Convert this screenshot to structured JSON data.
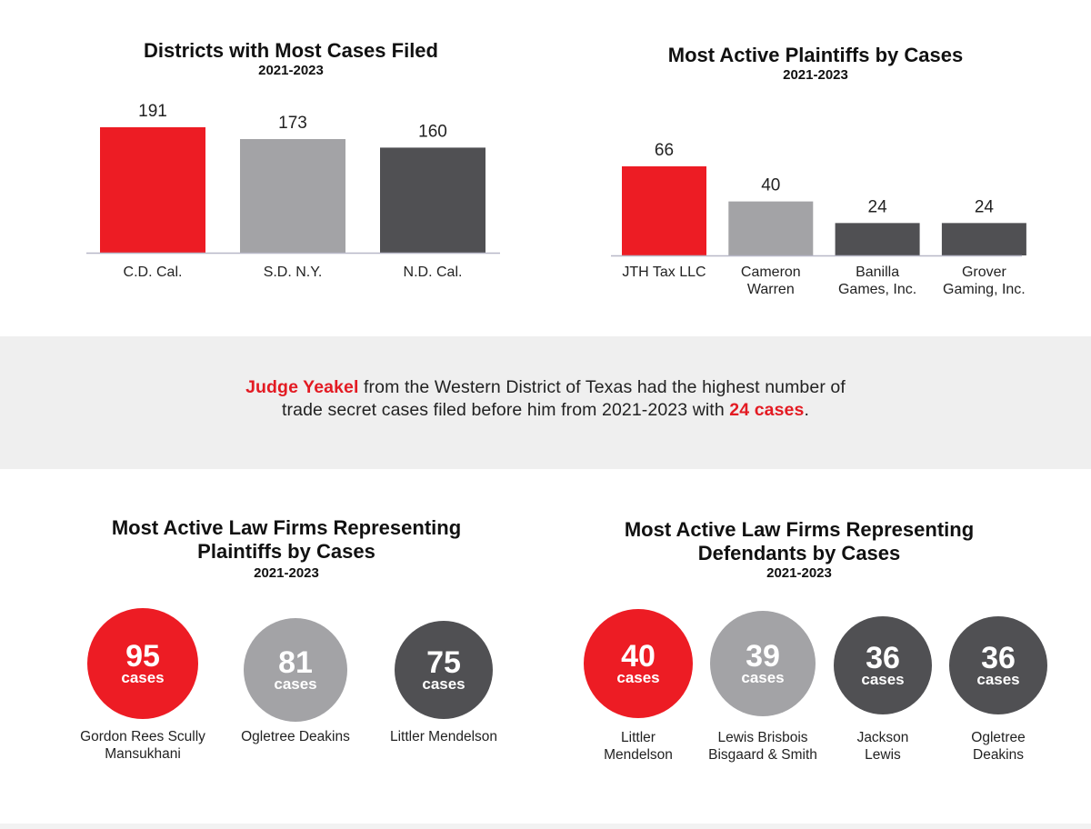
{
  "colors": {
    "red": "#ed1c24",
    "light_gray": "#a3a3a6",
    "dark_gray": "#505053",
    "axis": "#b8b8c8",
    "band": "#efefef"
  },
  "chart_data": [
    {
      "type": "bar",
      "title": "Districts with Most Cases Filed",
      "subtitle": "2021-2023",
      "categories": [
        "C.D. Cal.",
        "S.D. N.Y.",
        "N.D. Cal."
      ],
      "values": [
        191,
        173,
        160
      ],
      "bar_colors": [
        "#ed1c24",
        "#a3a3a6",
        "#505053"
      ],
      "ylim": [
        0,
        191
      ],
      "grid": false,
      "xlabel": "",
      "ylabel": ""
    },
    {
      "type": "bar",
      "title": "Most Active Plaintiffs by Cases",
      "subtitle": "2021-2023",
      "categories": [
        "JTH Tax LLC",
        "Cameron\nWarren",
        "Banilla\nGames, Inc.",
        "Grover\nGaming, Inc."
      ],
      "values": [
        66,
        40,
        24,
        24
      ],
      "bar_colors": [
        "#ed1c24",
        "#a3a3a6",
        "#505053",
        "#505053"
      ],
      "ylim": [
        0,
        66
      ],
      "grid": false,
      "xlabel": "",
      "ylabel": ""
    },
    {
      "type": "bubble",
      "title": "Most Active Law Firms Representing\nPlaintiffs by Cases",
      "subtitle": "2021-2023",
      "unit_label": "cases",
      "items": [
        {
          "name": "Gordon Rees Scully\nMansukhani",
          "value": 95,
          "color": "#ed1c24"
        },
        {
          "name": "Ogletree Deakins",
          "value": 81,
          "color": "#a3a3a6"
        },
        {
          "name": "Littler Mendelson",
          "value": 75,
          "color": "#505053"
        }
      ]
    },
    {
      "type": "bubble",
      "title": "Most Active Law Firms Representing\nDefendants by Cases",
      "subtitle": "2021-2023",
      "unit_label": "cases",
      "items": [
        {
          "name": "Littler\nMendelson",
          "value": 40,
          "color": "#ed1c24"
        },
        {
          "name": "Lewis Brisbois\nBisgaard & Smith",
          "value": 39,
          "color": "#a3a3a6"
        },
        {
          "name": "Jackson\nLewis",
          "value": 36,
          "color": "#505053"
        },
        {
          "name": "Ogletree\nDeakins",
          "value": 36,
          "color": "#505053"
        }
      ]
    }
  ],
  "callout": {
    "judge": "Judge Yeakel",
    "text_1": " from the Western District of Texas had the highest number of",
    "text_2": "trade secret cases filed before him from 2021-2023 with ",
    "count": "24 cases",
    "end": "."
  }
}
